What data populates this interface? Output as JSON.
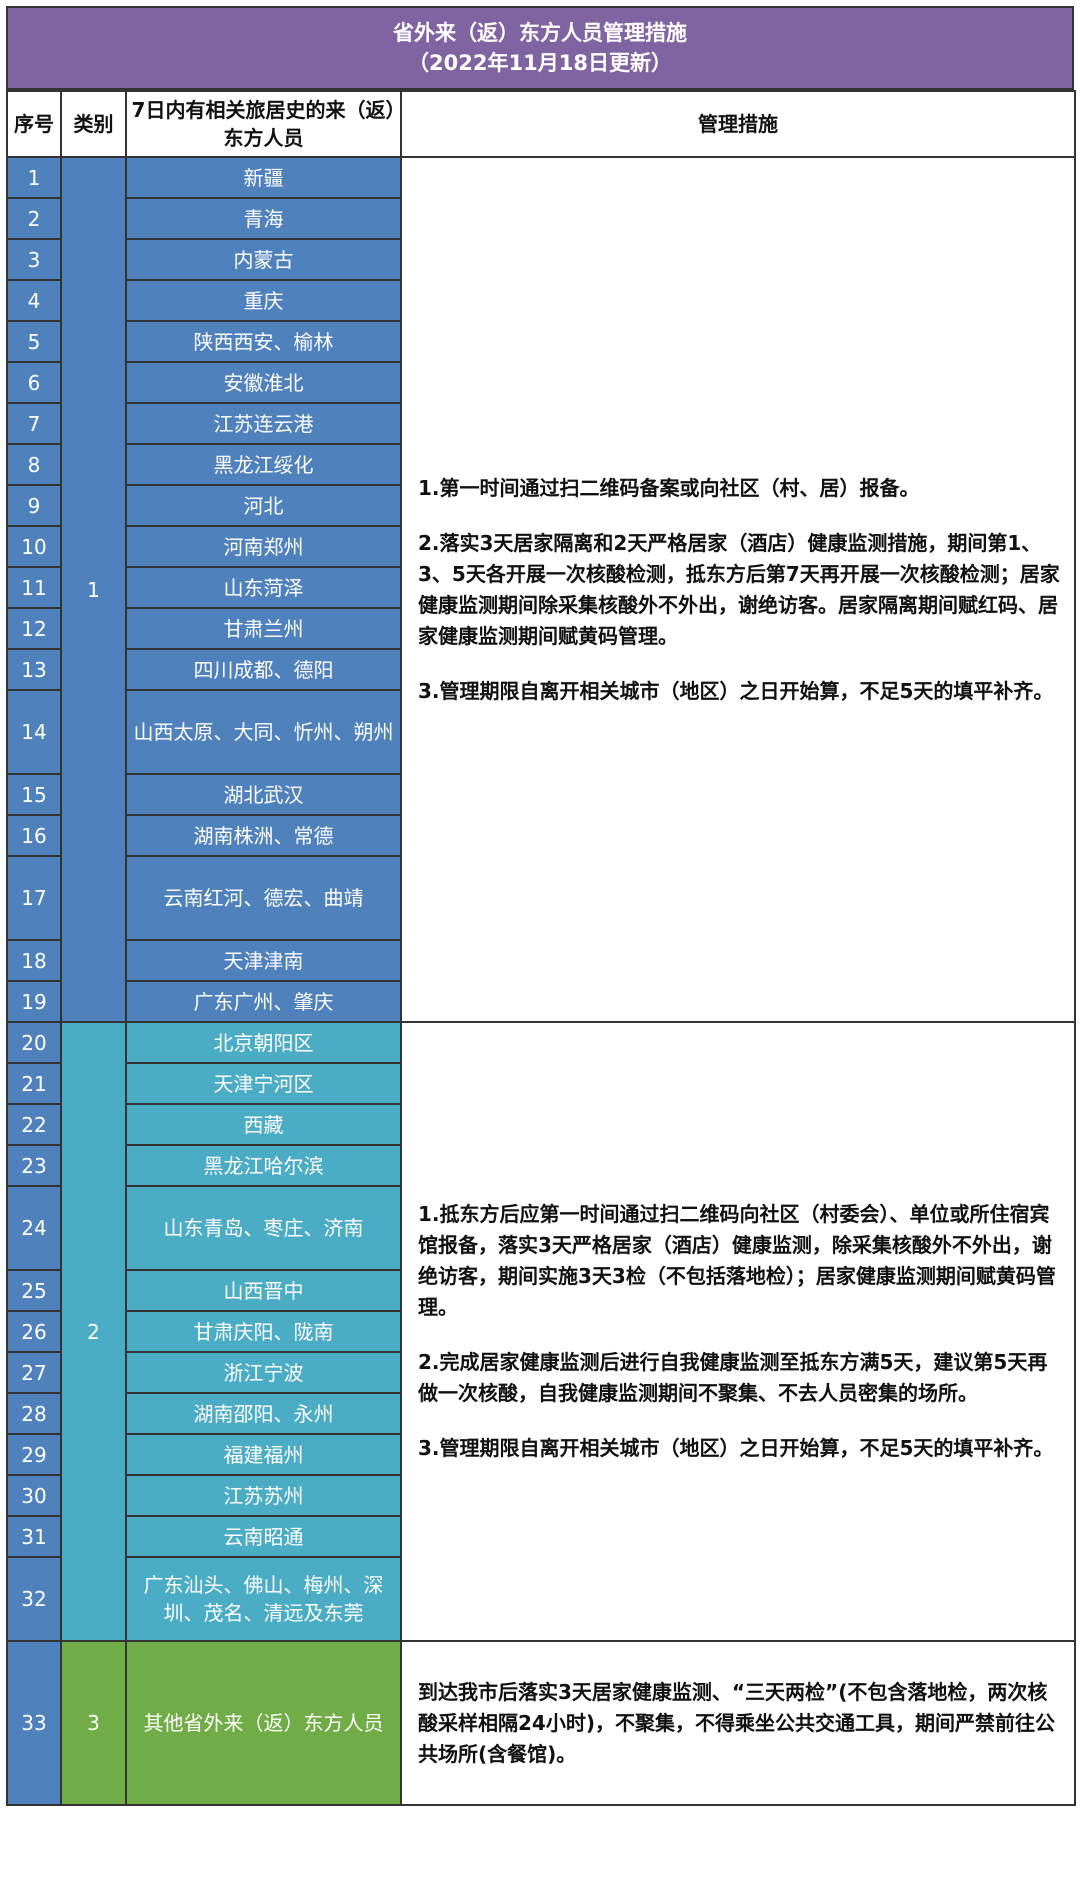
{
  "title": {
    "line1": "省外来（返）东方人员管理措施",
    "line2": "（2022年11月18日更新）"
  },
  "headers": {
    "seq": "序号",
    "category": "类别",
    "region": "7日内有相关旅居史的来（返）东方人员",
    "measures": "管理措施"
  },
  "colors": {
    "title": "#8064a2",
    "category1": "#4f81bd",
    "category2": "#4bacc6",
    "category3": "#70ad47"
  },
  "groups": [
    {
      "category": "1",
      "rows": [
        {
          "seq": "1",
          "region": "新疆"
        },
        {
          "seq": "2",
          "region": "青海"
        },
        {
          "seq": "3",
          "region": "内蒙古"
        },
        {
          "seq": "4",
          "region": "重庆"
        },
        {
          "seq": "5",
          "region": "陕西西安、榆林"
        },
        {
          "seq": "6",
          "region": "安徽淮北"
        },
        {
          "seq": "7",
          "region": "江苏连云港"
        },
        {
          "seq": "8",
          "region": "黑龙江绥化"
        },
        {
          "seq": "9",
          "region": "河北"
        },
        {
          "seq": "10",
          "region": "河南郑州"
        },
        {
          "seq": "11",
          "region": "山东菏泽"
        },
        {
          "seq": "12",
          "region": "甘肃兰州"
        },
        {
          "seq": "13",
          "region": "四川成都、德阳"
        },
        {
          "seq": "14",
          "region": "山西太原、大同、忻州、朔州"
        },
        {
          "seq": "15",
          "region": "湖北武汉"
        },
        {
          "seq": "16",
          "region": "湖南株洲、常德"
        },
        {
          "seq": "17",
          "region": "云南红河、德宏、曲靖"
        },
        {
          "seq": "18",
          "region": "天津津南"
        },
        {
          "seq": "19",
          "region": "广东广州、肇庆"
        }
      ],
      "measures": [
        "1.第一时间通过扫二维码备案或向社区（村、居）报备。",
        "2.落实3天居家隔离和2天严格居家（酒店）健康监测措施，期间第1、3、5天各开展一次核酸检测，抵东方后第7天再开展一次核酸检测；居家健康监测期间除采集核酸外不外出，谢绝访客。居家隔离期间赋红码、居家健康监测期间赋黄码管理。",
        "3.管理期限自离开相关城市（地区）之日开始算，不足5天的填平补齐。"
      ]
    },
    {
      "category": "2",
      "rows": [
        {
          "seq": "20",
          "region": "北京朝阳区"
        },
        {
          "seq": "21",
          "region": "天津宁河区"
        },
        {
          "seq": "22",
          "region": "西藏"
        },
        {
          "seq": "23",
          "region": "黑龙江哈尔滨"
        },
        {
          "seq": "24",
          "region": "山东青岛、枣庄、济南"
        },
        {
          "seq": "25",
          "region": "山西晋中"
        },
        {
          "seq": "26",
          "region": "甘肃庆阳、陇南"
        },
        {
          "seq": "27",
          "region": "浙江宁波"
        },
        {
          "seq": "28",
          "region": "湖南邵阳、永州"
        },
        {
          "seq": "29",
          "region": "福建福州"
        },
        {
          "seq": "30",
          "region": "江苏苏州"
        },
        {
          "seq": "31",
          "region": "云南昭通"
        },
        {
          "seq": "32",
          "region": "广东汕头、佛山、梅州、深圳、茂名、清远及东莞"
        }
      ],
      "measures": [
        "1.抵东方后应第一时间通过扫二维码向社区（村委会）、单位或所住宿宾馆报备，落实3天严格居家（酒店）健康监测，除采集核酸外不外出，谢绝访客，期间实施3天3检（不包括落地检）；居家健康监测期间赋黄码管理。",
        "2.完成居家健康监测后进行自我健康监测至抵东方满5天，建议第5天再做一次核酸，自我健康监测期间不聚集、不去人员密集的场所。",
        "3.管理期限自离开相关城市（地区）之日开始算，不足5天的填平补齐。"
      ]
    },
    {
      "category": "3",
      "rows": [
        {
          "seq": "33",
          "region": "其他省外来（返）东方人员"
        }
      ],
      "measures": [
        "到达我市后落实3天居家健康监测、“三天两检”(不包含落地检，两次核酸采样相隔24小时)，不聚集，不得乘坐公共交通工具，期间严禁前往公共场所(含餐馆)。"
      ]
    }
  ]
}
